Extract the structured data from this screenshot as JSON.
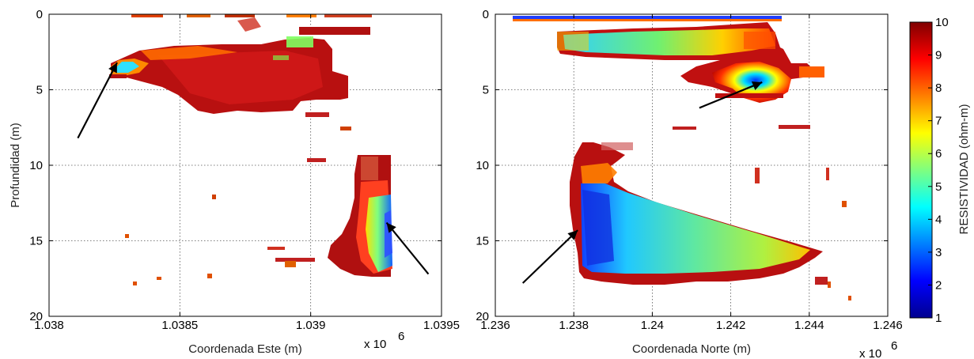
{
  "chart_data": [
    {
      "type": "heatmap",
      "panel": "left",
      "xlabel": "Coordenada Este (m)",
      "ylabel": "Profundidad (m)",
      "x_multiplier_base": "x 10",
      "x_multiplier_exp": "6",
      "xlim": [
        1.038,
        1.0395
      ],
      "ylim": [
        0,
        20
      ],
      "y_reversed": true,
      "grid": true,
      "xticks": [
        "1.038",
        "1.0385",
        "1.039",
        "1.0395"
      ],
      "yticks": [
        "0",
        "5",
        "10",
        "15",
        "20"
      ],
      "arrows": [
        {
          "from": [
            1.03811,
            8.2
          ],
          "to": [
            1.03826,
            3.2
          ]
        },
        {
          "from": [
            1.03945,
            17.2
          ],
          "to": [
            1.03929,
            13.8
          ]
        }
      ]
    },
    {
      "type": "heatmap",
      "panel": "right",
      "xlabel": "Coordenada Norte (m)",
      "x_multiplier_base": "x 10",
      "x_multiplier_exp": "6",
      "xlim": [
        1.236,
        1.246
      ],
      "ylim": [
        0,
        20
      ],
      "y_reversed": true,
      "grid": true,
      "xticks": [
        "1.236",
        "1.238",
        "1.24",
        "1.242",
        "1.244",
        "1.246"
      ],
      "yticks": [
        "0",
        "5",
        "10",
        "15",
        "20"
      ],
      "arrows": [
        {
          "from": [
            1.2412,
            6.2
          ],
          "to": [
            1.2428,
            4.5
          ]
        },
        {
          "from": [
            1.2367,
            17.8
          ],
          "to": [
            1.2381,
            14.3
          ]
        }
      ]
    }
  ],
  "colorbar": {
    "label": "RESISTIVIDAD (ohm-m)",
    "min": 1,
    "max": 10,
    "ticks": [
      "1",
      "2",
      "3",
      "4",
      "5",
      "6",
      "7",
      "8",
      "9",
      "10"
    ],
    "colormap": "jet"
  }
}
